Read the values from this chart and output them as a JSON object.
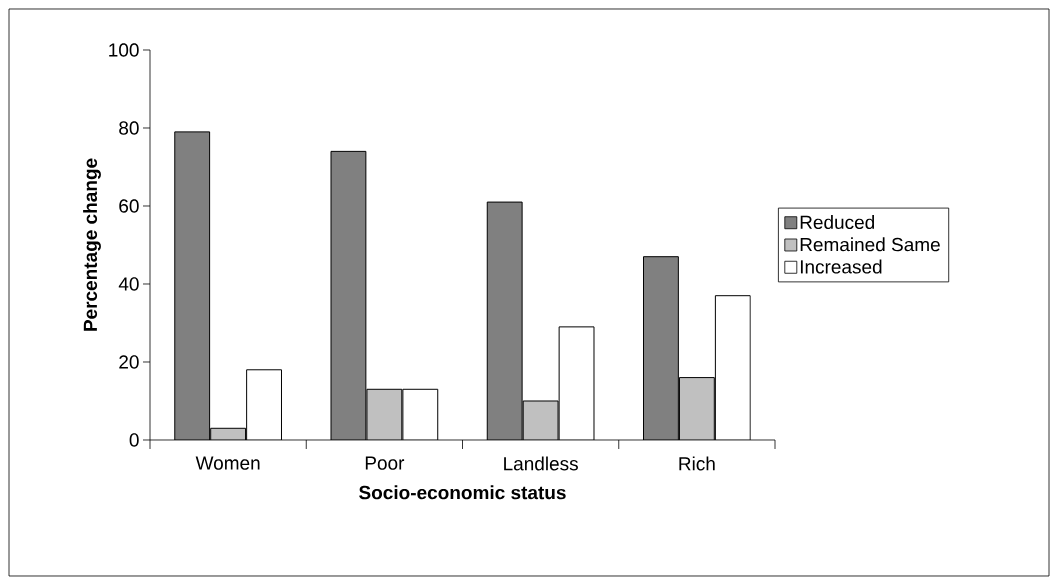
{
  "chart_data": {
    "type": "bar",
    "xlabel": "Socio-economic status",
    "ylabel": "Percentage change",
    "categories": [
      "Women",
      "Poor",
      "Landless",
      "Rich"
    ],
    "series": [
      {
        "name": "Reduced",
        "color": "#808080",
        "values": [
          79,
          74,
          61,
          47
        ]
      },
      {
        "name": "Remained Same",
        "color": "#c0c0c0",
        "values": [
          3,
          13,
          10,
          16
        ]
      },
      {
        "name": "Increased",
        "color": "#ffffff",
        "values": [
          18,
          13,
          29,
          37
        ]
      }
    ],
    "ylim": [
      0,
      100
    ],
    "yticks": [
      0,
      20,
      40,
      60,
      80,
      100
    ],
    "grid": false,
    "legend": "right"
  }
}
